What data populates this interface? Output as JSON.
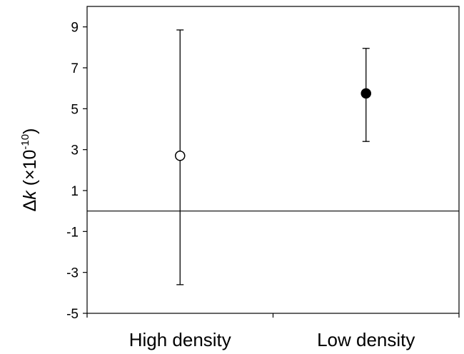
{
  "chart_data": {
    "type": "scatter",
    "subtype": "point-with-error-bars",
    "title": "",
    "xlabel": "",
    "ylabel": {
      "delta": "Δ",
      "k": "k",
      "open": " (×10",
      "exponent": "-10",
      "close": ")"
    },
    "categories": [
      "High density",
      "Low density"
    ],
    "series": [
      {
        "points": [
          {
            "category": "High density",
            "value": 2.7,
            "lower": -3.6,
            "upper": 8.85,
            "marker": "open-circle"
          },
          {
            "category": "Low density",
            "value": 5.75,
            "lower": 3.4,
            "upper": 7.95,
            "marker": "filled-circle"
          }
        ]
      }
    ],
    "reference_line": 0,
    "ylim": [
      -5,
      10
    ],
    "yticks": [
      {
        "value": 9,
        "label": "9"
      },
      {
        "value": 7,
        "label": "7"
      },
      {
        "value": 5,
        "label": "5"
      },
      {
        "value": 3,
        "label": "3"
      },
      {
        "value": 1,
        "label": "1"
      },
      {
        "value": -1,
        "label": "-1"
      },
      {
        "value": -3,
        "label": "-3"
      },
      {
        "value": -5,
        "label": "-5"
      }
    ],
    "grid": false,
    "legend": "none"
  }
}
